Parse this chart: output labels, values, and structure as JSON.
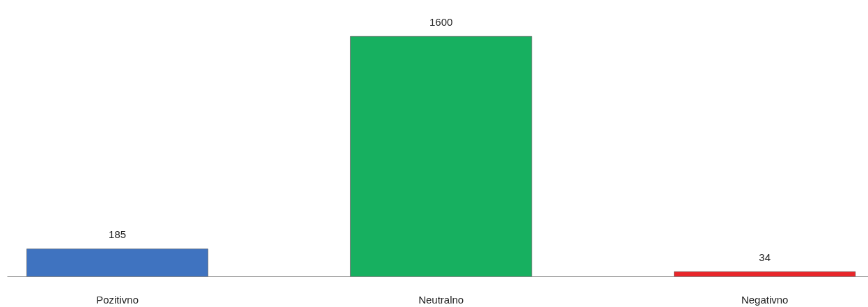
{
  "chart_data": {
    "type": "bar",
    "categories": [
      "Pozitivno",
      "Neutralno",
      "Negativno"
    ],
    "values": [
      185,
      1600,
      34
    ],
    "colors": [
      "#3f73c0",
      "#17b060",
      "#e8262a"
    ],
    "data_labels": true,
    "tick_labels": "x"
  }
}
